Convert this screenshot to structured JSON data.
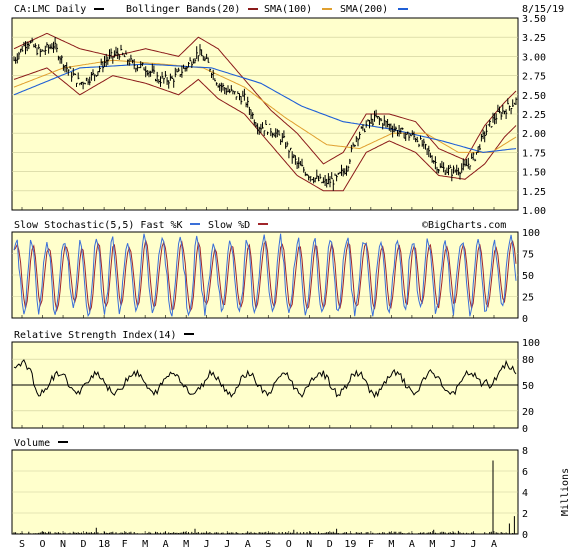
{
  "header": {
    "symbol_label": "CA:LMC Daily",
    "bb_label": "Bollinger Bands(20)",
    "sma100_label": "SMA(100)",
    "sma200_label": "SMA(200)",
    "date": "8/15/19"
  },
  "colors": {
    "panel_bg": "#ffffcc",
    "grid": "#cccc99",
    "price": "#000000",
    "bollinger": "#8b1a1a",
    "sma100": "#8b1a1a",
    "sma200": "#1f5fd6",
    "sma200_alt": "#e0a030",
    "fast_k": "#3a6fd8",
    "slow_d": "#a0252a",
    "black": "#000000"
  },
  "watermark": "©BigCharts.com",
  "chart_data": [
    {
      "type": "line",
      "name": "price",
      "title": "CA:LMC Daily",
      "y_ticks": [
        "3.50",
        "3.25",
        "3.00",
        "2.75",
        "2.50",
        "2.25",
        "2.00",
        "1.75",
        "1.50",
        "1.25",
        "1.00"
      ],
      "ylim": [
        1.0,
        3.5
      ],
      "x_ticks": [
        "S",
        "O",
        "N",
        "D",
        "18",
        "F",
        "M",
        "A",
        "M",
        "J",
        "J",
        "A",
        "S",
        "O",
        "N",
        "D",
        "19",
        "F",
        "M",
        "A",
        "M",
        "J",
        "J",
        "A"
      ],
      "anchors": [
        [
          0,
          2.95
        ],
        [
          8,
          3.2
        ],
        [
          16,
          3.05
        ],
        [
          24,
          3.15
        ],
        [
          32,
          2.85
        ],
        [
          40,
          2.65
        ],
        [
          48,
          2.75
        ],
        [
          56,
          2.95
        ],
        [
          64,
          3.05
        ],
        [
          72,
          2.9
        ],
        [
          80,
          2.85
        ],
        [
          88,
          2.7
        ],
        [
          96,
          2.7
        ],
        [
          104,
          2.85
        ],
        [
          112,
          3.05
        ],
        [
          118,
          2.9
        ],
        [
          124,
          2.65
        ],
        [
          130,
          2.55
        ],
        [
          140,
          2.45
        ],
        [
          148,
          2.1
        ],
        [
          156,
          2.05
        ],
        [
          164,
          1.9
        ],
        [
          172,
          1.6
        ],
        [
          180,
          1.45
        ],
        [
          188,
          1.35
        ],
        [
          196,
          1.4
        ],
        [
          202,
          1.55
        ],
        [
          208,
          1.95
        ],
        [
          214,
          2.1
        ],
        [
          220,
          2.2
        ],
        [
          228,
          2.1
        ],
        [
          236,
          2.0
        ],
        [
          244,
          1.95
        ],
        [
          252,
          1.75
        ],
        [
          258,
          1.55
        ],
        [
          266,
          1.5
        ],
        [
          274,
          1.55
        ],
        [
          280,
          1.7
        ],
        [
          286,
          2.0
        ],
        [
          292,
          2.2
        ],
        [
          298,
          2.3
        ],
        [
          305,
          2.42
        ]
      ],
      "bb_upper_anchors": [
        [
          0,
          3.1
        ],
        [
          20,
          3.3
        ],
        [
          40,
          3.1
        ],
        [
          60,
          3.0
        ],
        [
          80,
          3.1
        ],
        [
          100,
          3.0
        ],
        [
          112,
          3.25
        ],
        [
          124,
          3.1
        ],
        [
          140,
          2.7
        ],
        [
          156,
          2.3
        ],
        [
          172,
          2.0
        ],
        [
          188,
          1.6
        ],
        [
          200,
          1.75
        ],
        [
          214,
          2.25
        ],
        [
          228,
          2.25
        ],
        [
          244,
          2.15
        ],
        [
          258,
          1.8
        ],
        [
          274,
          1.65
        ],
        [
          286,
          2.1
        ],
        [
          298,
          2.4
        ],
        [
          305,
          2.55
        ]
      ],
      "bb_lower_anchors": [
        [
          0,
          2.7
        ],
        [
          20,
          2.85
        ],
        [
          40,
          2.5
        ],
        [
          60,
          2.75
        ],
        [
          80,
          2.65
        ],
        [
          100,
          2.5
        ],
        [
          112,
          2.7
        ],
        [
          124,
          2.45
        ],
        [
          140,
          2.25
        ],
        [
          156,
          1.85
        ],
        [
          172,
          1.45
        ],
        [
          188,
          1.25
        ],
        [
          200,
          1.25
        ],
        [
          214,
          1.75
        ],
        [
          228,
          1.9
        ],
        [
          244,
          1.75
        ],
        [
          258,
          1.45
        ],
        [
          274,
          1.4
        ],
        [
          286,
          1.6
        ],
        [
          298,
          1.95
        ],
        [
          305,
          2.1
        ]
      ],
      "sma100_anchors": [
        [
          0,
          2.6
        ],
        [
          30,
          2.85
        ],
        [
          60,
          2.95
        ],
        [
          90,
          2.9
        ],
        [
          115,
          2.85
        ],
        [
          140,
          2.6
        ],
        [
          165,
          2.2
        ],
        [
          190,
          1.85
        ],
        [
          210,
          1.8
        ],
        [
          230,
          2.0
        ],
        [
          250,
          2.0
        ],
        [
          270,
          1.75
        ],
        [
          290,
          1.75
        ],
        [
          305,
          1.95
        ]
      ],
      "sma200_anchors": [
        [
          0,
          2.5
        ],
        [
          40,
          2.85
        ],
        [
          80,
          2.9
        ],
        [
          120,
          2.85
        ],
        [
          150,
          2.65
        ],
        [
          175,
          2.35
        ],
        [
          200,
          2.15
        ],
        [
          230,
          2.05
        ],
        [
          260,
          1.9
        ],
        [
          285,
          1.75
        ],
        [
          305,
          1.8
        ]
      ]
    },
    {
      "type": "line",
      "name": "stochastic",
      "title": "Slow Stochastic(5,5) Fast %K",
      "slow_label": "Slow %D",
      "y_ticks": [
        "100",
        "75",
        "50",
        "25",
        "0"
      ],
      "ylim": [
        0,
        100
      ]
    },
    {
      "type": "line",
      "name": "rsi",
      "title": "Relative Strength Index(14)",
      "y_ticks": [
        "100",
        "80",
        "50",
        "20",
        "0"
      ],
      "ylim": [
        0,
        100
      ],
      "midline": 50
    },
    {
      "type": "bar",
      "name": "volume",
      "title": "Volume",
      "y_ticks": [
        "8",
        "6",
        "4",
        "2",
        "0"
      ],
      "ylabel": "Millions",
      "ylim": [
        0,
        8
      ],
      "spikes": [
        [
          50,
          0.6
        ],
        [
          110,
          0.5
        ],
        [
          170,
          0.4
        ],
        [
          196,
          0.5
        ],
        [
          255,
          0.4
        ],
        [
          270,
          0.3
        ],
        [
          291,
          7.0
        ],
        [
          301,
          1.0
        ],
        [
          304,
          1.7
        ]
      ]
    }
  ]
}
